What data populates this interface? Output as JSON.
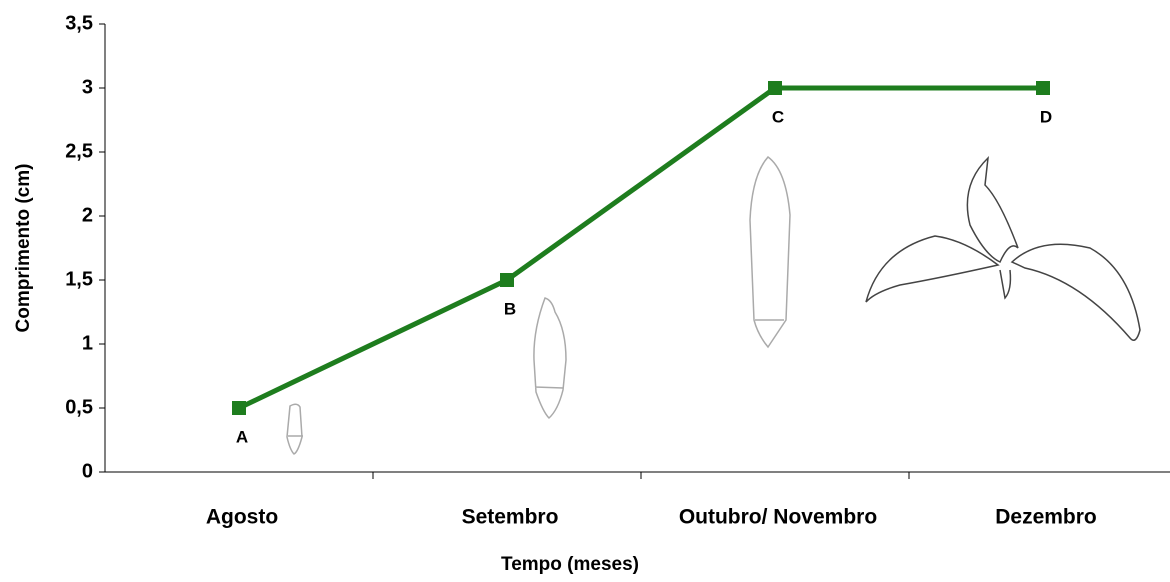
{
  "chart_data": {
    "type": "line",
    "x_label": "Tempo (meses)",
    "y_label": "Comprimento (cm)",
    "categories": [
      "Agosto",
      "Setembro",
      "Outubro/ Novembro",
      "Dezembro"
    ],
    "series": [
      {
        "name": "Comprimento",
        "color": "#1e7d1e",
        "values": [
          0.5,
          1.5,
          3,
          3
        ]
      }
    ],
    "point_labels": [
      "A",
      "B",
      "C",
      "D"
    ],
    "ylim": [
      0,
      3.5
    ],
    "yticks": [
      0,
      {
        "value": 0.5,
        "label": "0,5"
      },
      1,
      {
        "value": 1.5,
        "label": "1,5"
      },
      2,
      {
        "value": 2.5,
        "label": "2,5"
      },
      3,
      {
        "value": 3.5,
        "label": "3,5"
      }
    ]
  }
}
